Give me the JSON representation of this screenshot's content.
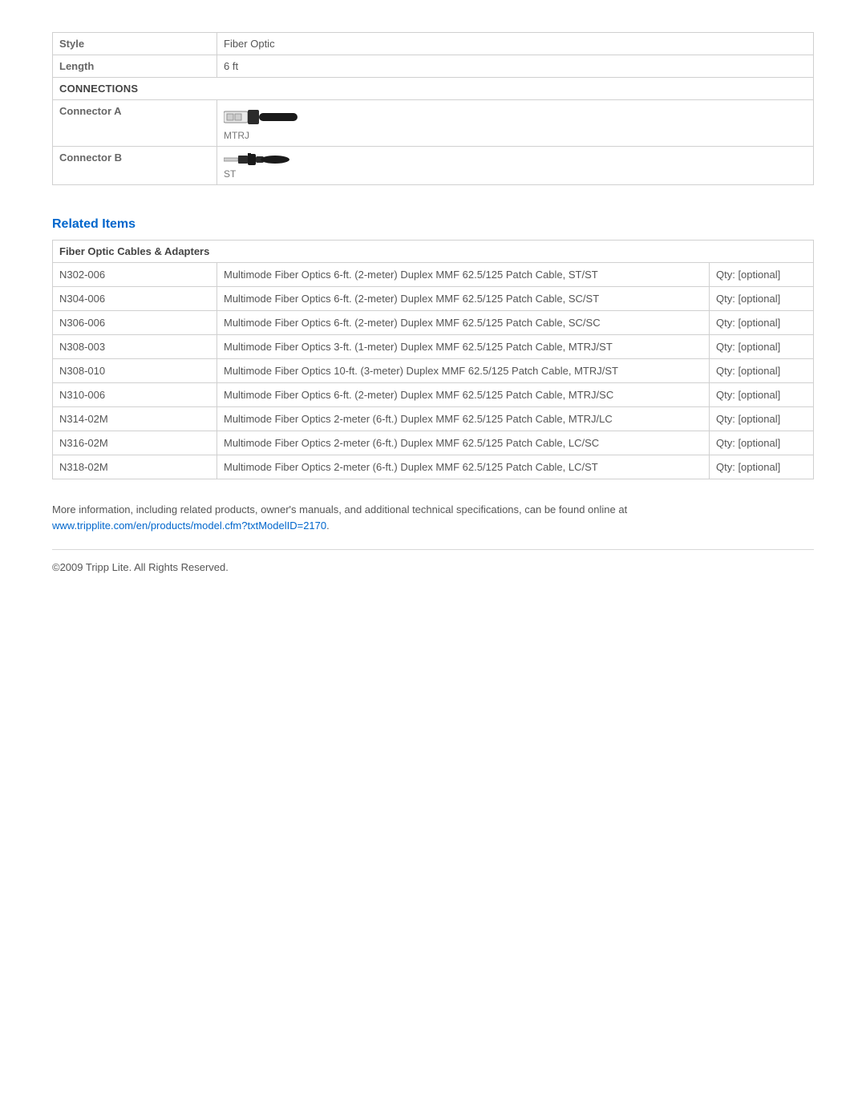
{
  "specs": {
    "rows": [
      {
        "label": "Style",
        "value": "Fiber Optic"
      },
      {
        "label": "Length",
        "value": "6 ft"
      }
    ],
    "connections_header": "CONNECTIONS",
    "connector_a": {
      "label": "Connector A",
      "caption": "MTRJ"
    },
    "connector_b": {
      "label": "Connector B",
      "caption": "ST"
    }
  },
  "related": {
    "heading": "Related Items",
    "category": "Fiber Optic Cables & Adapters",
    "items": [
      {
        "model": "N302-006",
        "desc": "Multimode Fiber Optics 6-ft. (2-meter) Duplex MMF 62.5/125 Patch Cable, ST/ST",
        "qty": "Qty: [optional]"
      },
      {
        "model": "N304-006",
        "desc": "Multimode Fiber Optics 6-ft. (2-meter) Duplex MMF 62.5/125 Patch Cable, SC/ST",
        "qty": "Qty: [optional]"
      },
      {
        "model": "N306-006",
        "desc": "Multimode Fiber Optics 6-ft. (2-meter) Duplex MMF 62.5/125 Patch Cable, SC/SC",
        "qty": "Qty: [optional]"
      },
      {
        "model": "N308-003",
        "desc": "Multimode Fiber Optics 3-ft. (1-meter) Duplex MMF 62.5/125 Patch Cable, MTRJ/ST",
        "qty": "Qty: [optional]"
      },
      {
        "model": "N308-010",
        "desc": "Multimode Fiber Optics 10-ft. (3-meter) Duplex MMF 62.5/125 Patch Cable, MTRJ/ST",
        "qty": "Qty: [optional]"
      },
      {
        "model": "N310-006",
        "desc": "Multimode Fiber Optics 6-ft. (2-meter) Duplex MMF 62.5/125 Patch Cable, MTRJ/SC",
        "qty": "Qty: [optional]"
      },
      {
        "model": "N314-02M",
        "desc": "Multimode Fiber Optics 2-meter (6-ft.) Duplex MMF 62.5/125 Patch Cable, MTRJ/LC",
        "qty": "Qty: [optional]"
      },
      {
        "model": "N316-02M",
        "desc": "Multimode Fiber Optics 2-meter (6-ft.) Duplex MMF 62.5/125 Patch Cable, LC/SC",
        "qty": "Qty: [optional]"
      },
      {
        "model": "N318-02M",
        "desc": "Multimode Fiber Optics 2-meter (6-ft.) Duplex MMF 62.5/125 Patch Cable, LC/ST",
        "qty": "Qty: [optional]"
      }
    ]
  },
  "footer": {
    "more_info_text": "More information, including related products, owner's manuals, and additional technical specifications, can be found online at",
    "link_text": "www.tripplite.com/en/products/model.cfm?txtModelID=2170",
    "link_period": ".",
    "copyright": "©2009 Tripp Lite.  All Rights Reserved."
  },
  "style": {
    "accent_color": "#0066cc",
    "border_color": "#d0d0d0",
    "text_color": "#555555"
  }
}
